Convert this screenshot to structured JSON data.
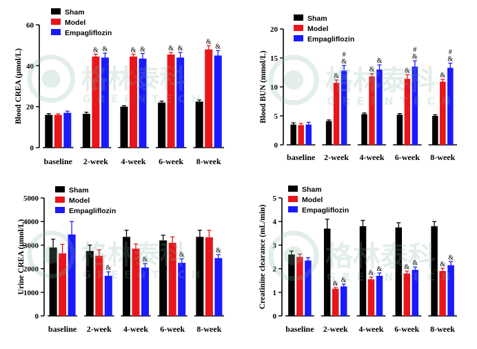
{
  "colors": {
    "sham": "#000000",
    "model": "#e8151b",
    "empagliflozin": "#1a1aff",
    "watermark": "#7fb39a"
  },
  "watermark": {
    "cn": "格林泰科",
    "en": "GREENTECH"
  },
  "chart_data": [
    {
      "type": "bar",
      "ylabel": "Blood CREA (μmol/L)",
      "ylim": [
        0,
        60
      ],
      "yticks": [
        "0",
        "20",
        "40",
        "60"
      ],
      "categories": [
        "baseline",
        "2-week",
        "4-week",
        "6-week",
        "8-week"
      ],
      "legend": "top-left",
      "series": [
        {
          "name": "Sham",
          "color": "#000000",
          "values": [
            16,
            16.5,
            20,
            22,
            22.5
          ],
          "errors": [
            0.6,
            0.8,
            0.5,
            0.7,
            0.8
          ],
          "annotations": [
            "",
            "",
            "",
            "",
            ""
          ]
        },
        {
          "name": "Model",
          "color": "#e8151b",
          "values": [
            16,
            44.5,
            44.5,
            45.5,
            48
          ],
          "errors": [
            0.5,
            1.2,
            1.2,
            1.0,
            1.8
          ],
          "annotations": [
            "",
            "&",
            "&",
            "&",
            "&"
          ]
        },
        {
          "name": "Empagliflozin",
          "color": "#1a1aff",
          "values": [
            17,
            44,
            43.5,
            44,
            45
          ],
          "errors": [
            0.8,
            2.2,
            2.5,
            2.5,
            2.4
          ],
          "annotations": [
            "",
            "&",
            "&",
            "&",
            "&"
          ]
        }
      ]
    },
    {
      "type": "bar",
      "ylabel": "Blood BUN (mmol/L)",
      "ylim": [
        0,
        20
      ],
      "yticks": [
        "0",
        "5",
        "10",
        "15",
        "20"
      ],
      "categories": [
        "baseline",
        "2-week",
        "4-week",
        "6-week",
        "8-week"
      ],
      "legend": "top-left",
      "series": [
        {
          "name": "Sham",
          "color": "#000000",
          "values": [
            3.5,
            4.1,
            5.3,
            5.2,
            5.0
          ],
          "errors": [
            0.3,
            0.2,
            0.2,
            0.2,
            0.2
          ],
          "annotations": [
            "",
            "",
            "",
            "",
            ""
          ]
        },
        {
          "name": "Model",
          "color": "#e8151b",
          "values": [
            3.4,
            10.7,
            11.8,
            11.4,
            10.9
          ],
          "errors": [
            0.3,
            0.5,
            0.5,
            0.7,
            0.4
          ],
          "annotations": [
            "",
            "&",
            "&",
            "&",
            "&"
          ]
        },
        {
          "name": "Empagliflozin",
          "color": "#1a1aff",
          "values": [
            3.5,
            12.8,
            13.0,
            13.5,
            13.3
          ],
          "errors": [
            0.4,
            0.9,
            0.8,
            1.0,
            0.8
          ],
          "annotations": [
            "",
            "#\n&",
            "&",
            "#\n&",
            "#\n&"
          ]
        }
      ]
    },
    {
      "type": "bar",
      "ylabel": "Urine CREA (μmol/L)",
      "ylim": [
        0,
        5000
      ],
      "yticks": [
        "0",
        "1000",
        "2000",
        "3000",
        "4000",
        "5000"
      ],
      "categories": [
        "baseline",
        "2-week",
        "4-week",
        "6-week",
        "8-week"
      ],
      "legend": "top-right",
      "series": [
        {
          "name": "Sham",
          "color": "#000000",
          "values": [
            2900,
            2750,
            3350,
            3200,
            3350
          ],
          "errors": [
            350,
            250,
            280,
            220,
            280
          ],
          "annotations": [
            "",
            "",
            "",
            "",
            ""
          ]
        },
        {
          "name": "Model",
          "color": "#e8151b",
          "values": [
            2650,
            2550,
            2850,
            3100,
            3330
          ],
          "errors": [
            380,
            250,
            200,
            250,
            300
          ],
          "annotations": [
            "",
            "",
            "",
            "",
            ""
          ]
        },
        {
          "name": "Empagliflozin",
          "color": "#1a1aff",
          "values": [
            3450,
            1700,
            2050,
            2250,
            2450
          ],
          "errors": [
            550,
            170,
            170,
            170,
            150
          ],
          "annotations": [
            "",
            "&",
            "&",
            "&",
            "&"
          ]
        }
      ]
    },
    {
      "type": "bar",
      "ylabel": "Creatinine clearance (mL/min)",
      "ylim": [
        0,
        5
      ],
      "yticks": [
        "0",
        "1",
        "2",
        "3",
        "4",
        "5"
      ],
      "categories": [
        "baseline",
        "2-week",
        "4-week",
        "6-week",
        "8-week"
      ],
      "legend": "top-left",
      "series": [
        {
          "name": "Sham",
          "color": "#000000",
          "values": [
            2.6,
            3.7,
            3.8,
            3.75,
            3.8
          ],
          "errors": [
            0.15,
            0.4,
            0.25,
            0.2,
            0.2
          ],
          "annotations": [
            "",
            "",
            "",
            "",
            ""
          ]
        },
        {
          "name": "Model",
          "color": "#e8151b",
          "values": [
            2.5,
            1.15,
            1.55,
            1.8,
            1.9
          ],
          "errors": [
            0.12,
            0.05,
            0.1,
            0.1,
            0.12
          ],
          "annotations": [
            "",
            "&",
            "&",
            "&",
            "&"
          ]
        },
        {
          "name": "Empagliflozin",
          "color": "#1a1aff",
          "values": [
            2.35,
            1.25,
            1.7,
            1.95,
            2.15
          ],
          "errors": [
            0.12,
            0.1,
            0.12,
            0.12,
            0.15
          ],
          "annotations": [
            "",
            "&",
            "&",
            "&",
            "&"
          ]
        }
      ]
    }
  ]
}
